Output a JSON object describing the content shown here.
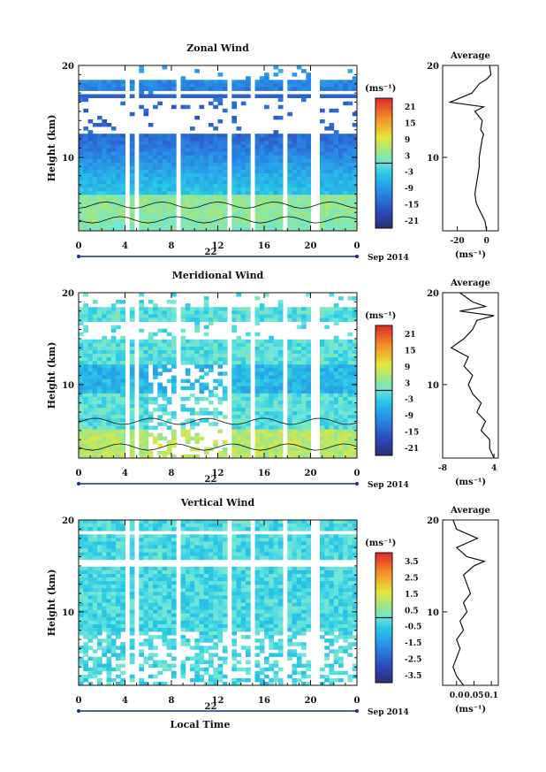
{
  "figure": {
    "month_label": "Sep 2014",
    "xlabel": "Local Time",
    "ylabel": "Height (km)",
    "unit_label": "(ms⁻¹)",
    "average_title": "Average"
  },
  "chart_data": [
    {
      "type": "heatmap",
      "title": "Zonal Wind",
      "xlabel": "",
      "ylabel": "Height (km)",
      "x_range": [
        0,
        24
      ],
      "x_ticks": [
        "0",
        "4",
        "8",
        "12",
        "16",
        "20",
        "0"
      ],
      "day_label": "22",
      "y_range": [
        2,
        20
      ],
      "y_ticks": [
        "10",
        "20"
      ],
      "colorbar": {
        "label": "(ms⁻¹)",
        "ticks": [
          21,
          15,
          9,
          3,
          -3,
          -9,
          -15,
          -21
        ],
        "range": [
          -24,
          24
        ]
      },
      "average_profile": {
        "title": "Average",
        "xlabel": "(ms⁻¹)",
        "x_ticks": [
          "-20",
          "0"
        ],
        "x_range": [
          -30,
          8
        ],
        "y_ticks": [
          "10",
          "20"
        ],
        "height_km": [
          2,
          3,
          4,
          5,
          6,
          7,
          8,
          9,
          10,
          11,
          12,
          12.5,
          13,
          14,
          15,
          15.5,
          16,
          17,
          18,
          18.5,
          19,
          20
        ],
        "value": [
          0,
          -1,
          -4,
          -7,
          -8,
          -7,
          -6,
          -5,
          -5,
          -4,
          -3,
          -2,
          -4,
          -3,
          -8,
          -2,
          -25,
          -10,
          -5,
          0,
          3,
          2
        ]
      }
    },
    {
      "type": "heatmap",
      "title": "Meridional Wind",
      "xlabel": "",
      "ylabel": "Height (km)",
      "x_range": [
        0,
        24
      ],
      "x_ticks": [
        "0",
        "4",
        "8",
        "12",
        "16",
        "20",
        "0"
      ],
      "day_label": "22",
      "y_range": [
        2,
        20
      ],
      "y_ticks": [
        "10",
        "20"
      ],
      "colorbar": {
        "label": "(ms⁻¹)",
        "ticks": [
          21,
          15,
          9,
          3,
          -3,
          -9,
          -15,
          -21
        ],
        "range": [
          -24,
          24
        ]
      },
      "average_profile": {
        "title": "Average",
        "xlabel": "(ms⁻¹)",
        "x_ticks": [
          "-8",
          "4"
        ],
        "x_range": [
          -8,
          5
        ],
        "y_ticks": [
          "10",
          "20"
        ],
        "height_km": [
          2,
          3,
          4,
          5,
          6,
          7,
          8,
          9,
          10,
          11,
          12,
          13,
          14,
          15,
          15.5,
          16,
          17,
          17.5,
          18,
          18.5,
          19,
          20
        ],
        "value": [
          4,
          3,
          3,
          1,
          2,
          0,
          1,
          -1,
          -2,
          -1,
          -3,
          -2,
          -6,
          -3,
          -2,
          -1,
          0,
          4,
          -4,
          2,
          -1,
          -4
        ]
      }
    },
    {
      "type": "heatmap",
      "title": "Vertical Wind",
      "xlabel": "Local Time",
      "ylabel": "Height (km)",
      "x_range": [
        0,
        24
      ],
      "x_ticks": [
        "0",
        "4",
        "8",
        "12",
        "16",
        "20",
        "0"
      ],
      "day_label": "22",
      "y_range": [
        2,
        20
      ],
      "y_ticks": [
        "10",
        "20"
      ],
      "colorbar": {
        "label": "(ms⁻¹)",
        "ticks": [
          3.5,
          2.5,
          1.5,
          0.5,
          -0.5,
          -1.5,
          -2.5,
          -3.5
        ],
        "range": [
          -4,
          4
        ]
      },
      "average_profile": {
        "title": "Average",
        "xlabel": "(ms⁻¹)",
        "x_ticks": [
          "0.0",
          "0.05",
          "0.1"
        ],
        "x_range": [
          -0.04,
          0.12
        ],
        "y_ticks": [
          "10",
          "20"
        ],
        "height_km": [
          2,
          3,
          4,
          5,
          6,
          7,
          8,
          9,
          10,
          11,
          12,
          13,
          14,
          15,
          15.5,
          16,
          17,
          18,
          19,
          20
        ],
        "value": [
          0.02,
          0.0,
          -0.01,
          0.0,
          0.01,
          0.0,
          0.02,
          0.01,
          0.03,
          0.02,
          0.04,
          0.03,
          0.02,
          0.05,
          0.08,
          0.03,
          0.0,
          0.06,
          0.0,
          -0.01
        ]
      }
    }
  ]
}
